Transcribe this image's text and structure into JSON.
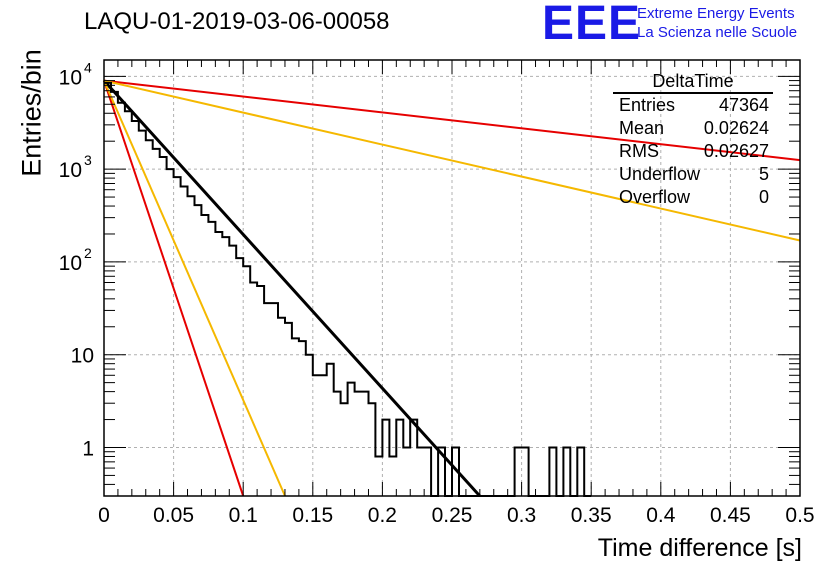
{
  "header": {
    "run_title": "LAQU-01-2019-03-06-00058",
    "logo_text": "EEE",
    "logo_line1": "Extreme Energy Events",
    "logo_line2": "La Scienza nelle Scuole"
  },
  "stats_box": {
    "title": "DeltaTime",
    "rows": [
      {
        "label": "Entries",
        "value": "47364"
      },
      {
        "label": "Mean",
        "value": "0.02624"
      },
      {
        "label": "RMS",
        "value": "0.02627"
      },
      {
        "label": "Underflow",
        "value": "5"
      },
      {
        "label": "Overflow",
        "value": "0"
      }
    ]
  },
  "colors": {
    "histogram": "#000000",
    "fit": "#000000",
    "red_curve": "#e60000",
    "yellow_curve": "#f5b800",
    "grid": "#b0b0b0",
    "logo": "#1a1ae6"
  },
  "chart_data": {
    "type": "line",
    "xlabel": "Time difference [s]",
    "ylabel": "Entries/bin",
    "xlim": [
      0,
      0.5
    ],
    "ylim": [
      0.3,
      15000
    ],
    "yscale": "log",
    "grid": true,
    "x_ticks": [
      "0",
      "0.05",
      "0.1",
      "0.15",
      "0.2",
      "0.25",
      "0.3",
      "0.35",
      "0.4",
      "0.45",
      "0.5"
    ],
    "y_ticks": [
      {
        "value": 1,
        "label": "1"
      },
      {
        "value": 10,
        "label": "10"
      },
      {
        "value": 100,
        "label": "10",
        "exp": "2"
      },
      {
        "value": 1000,
        "label": "10",
        "exp": "3"
      },
      {
        "value": 10000,
        "label": "10",
        "exp": "4"
      }
    ],
    "histogram": {
      "bin_width": 0.005,
      "bins_x": [
        0,
        0.005,
        0.01,
        0.015,
        0.02,
        0.025,
        0.03,
        0.035,
        0.04,
        0.045,
        0.05,
        0.055,
        0.06,
        0.065,
        0.07,
        0.075,
        0.08,
        0.085,
        0.09,
        0.095,
        0.1,
        0.105,
        0.11,
        0.115,
        0.12,
        0.125,
        0.13,
        0.135,
        0.14,
        0.145,
        0.15,
        0.155,
        0.16,
        0.165,
        0.17,
        0.175,
        0.18,
        0.185,
        0.19,
        0.195,
        0.2,
        0.205,
        0.21,
        0.215,
        0.22,
        0.225,
        0.23,
        0.235,
        0.24,
        0.245,
        0.25,
        0.255,
        0.26,
        0.265,
        0.27,
        0.275,
        0.28,
        0.285,
        0.29,
        0.295,
        0.3,
        0.305,
        0.31,
        0.315,
        0.32,
        0.325,
        0.33,
        0.335,
        0.34,
        0.345
      ],
      "counts": [
        8500,
        6800,
        5200,
        4200,
        3300,
        2600,
        2050,
        1650,
        1350,
        1000,
        820,
        650,
        510,
        410,
        320,
        270,
        210,
        185,
        150,
        110,
        90,
        60,
        55,
        36,
        36,
        25,
        22,
        15,
        14,
        10,
        6,
        6,
        8,
        4,
        3,
        5,
        4,
        4,
        3,
        3,
        2,
        1,
        2,
        2,
        1,
        1,
        1,
        0,
        1,
        0,
        0,
        0,
        0,
        0,
        0,
        0,
        0,
        0,
        0,
        0,
        1,
        0,
        0,
        0,
        0,
        0,
        0,
        0,
        0,
        0
      ],
      "overrides": [
        {
          "x": 0.11,
          "count": 55
        },
        {
          "x": 0.115,
          "count": 36
        },
        {
          "x": 0.195,
          "count": 0.8
        },
        {
          "x": 0.2,
          "count": 2
        },
        {
          "x": 0.205,
          "count": 0.8
        },
        {
          "x": 0.21,
          "count": 2
        },
        {
          "x": 0.215,
          "count": 1
        },
        {
          "x": 0.22,
          "count": 2
        },
        {
          "x": 0.225,
          "count": 1
        },
        {
          "x": 0.25,
          "count": 1
        },
        {
          "x": 0.295,
          "count": 1
        },
        {
          "x": 0.32,
          "count": 1
        },
        {
          "x": 0.33,
          "count": 1
        },
        {
          "x": 0.34,
          "count": 1
        }
      ]
    },
    "series": [
      {
        "name": "",
        "color": "black",
        "points": [
          [
            0,
            9000
          ],
          [
            0.27,
            0.3
          ]
        ]
      },
      {
        "name": "",
        "color": "red",
        "points": [
          [
            0,
            9000
          ],
          [
            0.5,
            1250
          ]
        ]
      },
      {
        "name": "",
        "color": "yellow",
        "points": [
          [
            0,
            9000
          ],
          [
            0.5,
            170
          ]
        ]
      },
      {
        "name": "",
        "color": "red",
        "points": [
          [
            0,
            9000
          ],
          [
            0.1,
            0.3
          ]
        ]
      },
      {
        "name": "",
        "color": "yellow",
        "points": [
          [
            0,
            9000
          ],
          [
            0.13,
            0.3
          ]
        ]
      }
    ]
  }
}
